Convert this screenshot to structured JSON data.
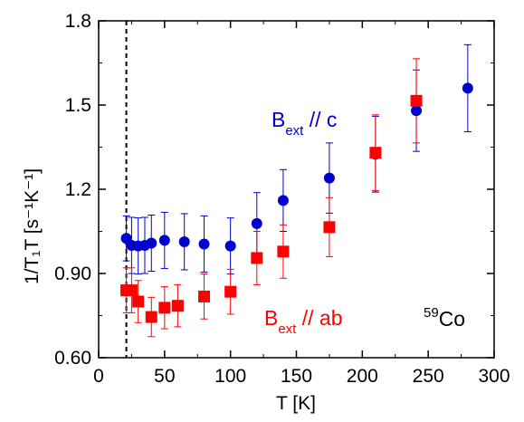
{
  "chart_data": {
    "type": "scatter",
    "xlim": [
      0,
      300
    ],
    "ylim": [
      0.6,
      1.8
    ],
    "x_ticks": [
      0,
      50,
      100,
      150,
      200,
      250,
      300
    ],
    "y_ticks": [
      0.6,
      0.9,
      1.2,
      1.5,
      1.8
    ],
    "y_tick_labels": [
      "0.60",
      "0.90",
      "1.2",
      "1.5",
      "1.8"
    ],
    "grid": false,
    "x_title": "T [K]",
    "y_title": "1/T₁T [s⁻¹K⁻¹]",
    "reference_line": {
      "x": 21,
      "style": "dashed"
    },
    "series": [
      {
        "color": "#0000cc",
        "marker": "circle",
        "points": [
          {
            "x": 21,
            "y": 1.025,
            "err": 0.08
          },
          {
            "x": 25,
            "y": 1.0,
            "err": 0.1
          },
          {
            "x": 30,
            "y": 0.998,
            "err": 0.1
          },
          {
            "x": 35,
            "y": 1.0,
            "err": 0.1
          },
          {
            "x": 40,
            "y": 1.008,
            "err": 0.1
          },
          {
            "x": 50,
            "y": 1.018,
            "err": 0.1
          },
          {
            "x": 65,
            "y": 1.013,
            "err": 0.1
          },
          {
            "x": 80,
            "y": 1.005,
            "err": 0.1
          },
          {
            "x": 100,
            "y": 0.998,
            "err": 0.1
          },
          {
            "x": 120,
            "y": 1.078,
            "err": 0.11
          },
          {
            "x": 140,
            "y": 1.16,
            "err": 0.11
          },
          {
            "x": 175,
            "y": 1.24,
            "err": 0.125
          },
          {
            "x": 210,
            "y": 1.325,
            "err": 0.135
          },
          {
            "x": 241,
            "y": 1.48,
            "err": 0.145
          },
          {
            "x": 280,
            "y": 1.56,
            "err": 0.155
          }
        ]
      },
      {
        "color": "#ff0000",
        "marker": "square",
        "points": [
          {
            "x": 21,
            "y": 0.84,
            "err": 0.08
          },
          {
            "x": 25,
            "y": 0.84,
            "err": 0.08
          },
          {
            "x": 30,
            "y": 0.8,
            "err": 0.075
          },
          {
            "x": 40,
            "y": 0.745,
            "err": 0.07
          },
          {
            "x": 50,
            "y": 0.778,
            "err": 0.075
          },
          {
            "x": 60,
            "y": 0.785,
            "err": 0.075
          },
          {
            "x": 80,
            "y": 0.818,
            "err": 0.08
          },
          {
            "x": 100,
            "y": 0.835,
            "err": 0.08
          },
          {
            "x": 120,
            "y": 0.955,
            "err": 0.095
          },
          {
            "x": 140,
            "y": 0.978,
            "err": 0.095
          },
          {
            "x": 175,
            "y": 1.065,
            "err": 0.105
          },
          {
            "x": 210,
            "y": 1.33,
            "err": 0.135
          },
          {
            "x": 241,
            "y": 1.515,
            "err": 0.15
          }
        ]
      }
    ],
    "annotations": [
      {
        "base": "B",
        "sub": "ext",
        "rest": " // c",
        "color": "#0000cc"
      },
      {
        "base": "B",
        "sub": "ext",
        "rest": " // ab",
        "color": "#ff0000"
      },
      {
        "sup": "59",
        "rest": "Co",
        "color": "#000000"
      }
    ]
  }
}
